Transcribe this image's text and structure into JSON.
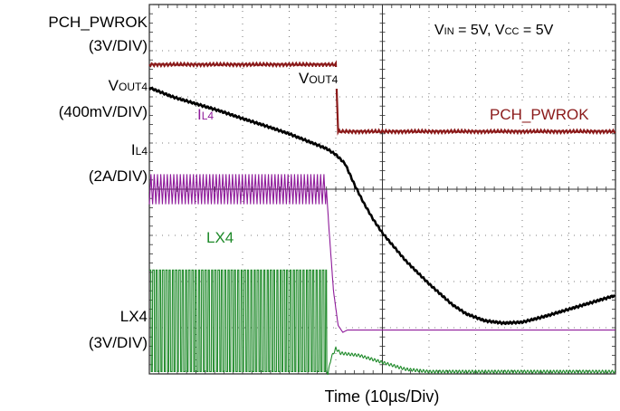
{
  "chart_data": {
    "type": "line",
    "title": "",
    "xlabel": "Time  (10µs/Div)",
    "ylabel": "",
    "grid": true,
    "grid_divisions": {
      "x": 10,
      "y": 8
    },
    "time_per_div_us": 10,
    "x_range_us": [
      0,
      100
    ],
    "conditions": {
      "vin_label": "V",
      "vin_sub": "IN",
      "vin_value": " = 5V, ",
      "vcc_label": "V",
      "vcc_sub": "CC",
      "vcc_value": " = 5V"
    },
    "channel_labels": [
      {
        "name": "PCH_PWROK",
        "scale": "(3V/DIV)"
      },
      {
        "name_main": "V",
        "name_sub": "OUT4",
        "scale": "(400mV/DIV)"
      },
      {
        "name_main": "I",
        "name_sub": "L4",
        "scale": "(2A/DIV)"
      },
      {
        "name": "LX4",
        "scale": "(3V/DIV)"
      }
    ],
    "trace_labels": {
      "vout": {
        "main": "V",
        "sub": "OUT4"
      },
      "il": {
        "main": "I",
        "sub": "L4"
      },
      "pwrok": "PCH_PWROK",
      "lx": "LX4"
    },
    "colors": {
      "pwrok": "#8b1a1a",
      "vout": "#000000",
      "il": "#8e1a9a",
      "lx": "#1f8a2a",
      "grid": "#555555"
    },
    "series": [
      {
        "name": "PCH_PWROK",
        "x_us": [
          0,
          40,
          40.5,
          100
        ],
        "y_div": [
          6.7,
          6.7,
          5.25,
          5.25
        ]
      },
      {
        "name": "VOUT4",
        "x_us": [
          0,
          5,
          10,
          15,
          20,
          25,
          30,
          35,
          38,
          40,
          42,
          44,
          46,
          48,
          50,
          55,
          60,
          65,
          68,
          72,
          76,
          80,
          85,
          90,
          95,
          100
        ],
        "y_div": [
          6.2,
          6.0,
          5.85,
          5.7,
          5.53,
          5.37,
          5.2,
          5.0,
          4.88,
          4.75,
          4.55,
          4.1,
          3.7,
          3.35,
          3.05,
          2.45,
          1.95,
          1.5,
          1.3,
          1.15,
          1.1,
          1.12,
          1.25,
          1.4,
          1.55,
          1.7
        ]
      },
      {
        "name": "IL4",
        "x_us": [
          0,
          38,
          38.5,
          39.5,
          40.5,
          41.5,
          42.5,
          100
        ],
        "y_div": [
          4.0,
          4.0,
          3.2,
          1.8,
          1.05,
          0.9,
          0.95,
          0.95
        ],
        "ripple_div": 0.65,
        "ripple_period_us": 0.7
      },
      {
        "name": "LX4",
        "x_us": [
          0,
          38,
          38.3,
          39,
          40,
          41,
          45,
          55,
          60,
          100
        ],
        "y_div": [
          0.1,
          0.1,
          0.0,
          0.35,
          0.55,
          0.45,
          0.4,
          0.1,
          0.05,
          0.05
        ],
        "switch_high_div": 2.25,
        "switch_low_div": 0.05,
        "switch_period_us": 0.7
      }
    ]
  }
}
